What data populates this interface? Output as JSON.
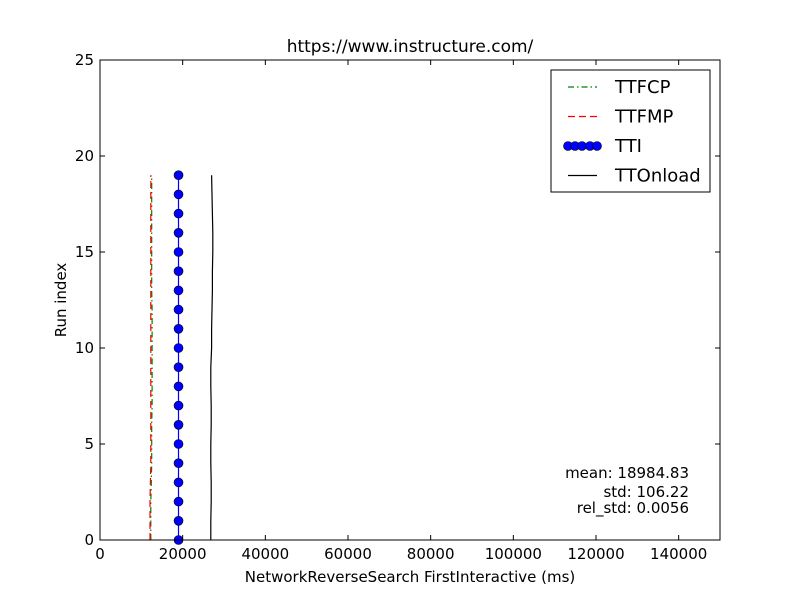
{
  "chart_data": {
    "type": "line",
    "title": "https://www.instructure.com/",
    "xlabel": "NetworkReverseSearch FirstInteractive (ms)",
    "ylabel": "Run index",
    "xlim": [
      0,
      150000
    ],
    "ylim": [
      0,
      25
    ],
    "x_ticks": [
      0,
      20000,
      40000,
      60000,
      80000,
      100000,
      120000,
      140000
    ],
    "x_tick_labels": [
      "0",
      "20000",
      "40000",
      "60000",
      "80000",
      "100000",
      "120000",
      "140000"
    ],
    "y_ticks": [
      0,
      5,
      10,
      15,
      20,
      25
    ],
    "y_tick_labels": [
      "0",
      "5",
      "10",
      "15",
      "20",
      "25"
    ],
    "legend_placement": "top-right",
    "grid": false,
    "y": [
      0,
      1,
      2,
      3,
      4,
      5,
      6,
      7,
      8,
      9,
      10,
      11,
      12,
      13,
      14,
      15,
      16,
      17,
      18,
      19
    ],
    "series": [
      {
        "name": "TTFCP",
        "color": "#008000",
        "style": "dash-dot",
        "x": [
          12300,
          12300,
          12300,
          12400,
          12500,
          12500,
          12500,
          12600,
          12600,
          12600,
          12600,
          12600,
          12600,
          12500,
          12500,
          12500,
          12500,
          12500,
          12500,
          12500
        ]
      },
      {
        "name": "TTFMP",
        "color": "#ff0000",
        "style": "dashed",
        "x": [
          12100,
          12100,
          12100,
          12200,
          12300,
          12300,
          12300,
          12300,
          12300,
          12300,
          12300,
          12300,
          12300,
          12300,
          12300,
          12300,
          12300,
          12300,
          12300,
          12300
        ]
      },
      {
        "name": "TTI",
        "color": "#0000ff",
        "style": "solid-circle-markers",
        "x": [
          19000,
          19000,
          19000,
          19000,
          19000,
          19000,
          19000,
          19000,
          19000,
          19000,
          19000,
          19000,
          19000,
          19000,
          19000,
          19000,
          19000,
          19000,
          19000,
          19000
        ]
      },
      {
        "name": "TTOnload",
        "color": "#000000",
        "style": "solid",
        "x": [
          26800,
          26800,
          26900,
          26900,
          26800,
          26800,
          26900,
          26900,
          26800,
          26800,
          27000,
          27000,
          27100,
          27200,
          27200,
          27300,
          27300,
          27200,
          27100,
          27000
        ]
      }
    ],
    "stats": [
      "mean: 18984.83",
      "std: 106.22",
      "rel_std: 0.0056"
    ]
  }
}
